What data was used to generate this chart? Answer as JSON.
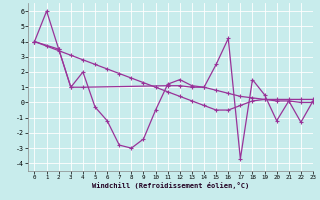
{
  "line1_x": [
    0,
    1,
    2,
    3,
    4,
    5,
    6,
    7,
    8,
    9,
    10,
    11,
    12,
    13,
    14,
    15,
    16,
    17,
    18,
    19,
    20,
    21,
    22,
    23
  ],
  "line1_y": [
    4,
    6,
    3.5,
    1,
    2,
    -0.3,
    -1.2,
    -2.8,
    -3,
    -2.4,
    -0.5,
    1.2,
    1.5,
    1.1,
    1.0,
    2.5,
    4.2,
    -3.7,
    1.5,
    0.5,
    -1.2,
    0.1,
    -1.3,
    0.1
  ],
  "line2_x": [
    0,
    2,
    3,
    4,
    11,
    12,
    13,
    14,
    15,
    16,
    17,
    18,
    19,
    20,
    21,
    22,
    23
  ],
  "line2_y": [
    4,
    3.5,
    1.0,
    1.0,
    1.1,
    1.1,
    1.0,
    1.0,
    0.8,
    0.6,
    0.4,
    0.3,
    0.2,
    0.1,
    0.1,
    0.0,
    0.0
  ],
  "line3_x": [
    0,
    1,
    2,
    3,
    4,
    5,
    6,
    7,
    8,
    9,
    10,
    11,
    12,
    13,
    14,
    15,
    16,
    17,
    18,
    19,
    20,
    21,
    22,
    23
  ],
  "line3_y": [
    4.0,
    3.7,
    3.4,
    3.1,
    2.8,
    2.5,
    2.2,
    1.9,
    1.6,
    1.3,
    1.0,
    0.7,
    0.4,
    0.1,
    -0.2,
    -0.5,
    -0.5,
    -0.2,
    0.1,
    0.2,
    0.2,
    0.2,
    0.2,
    0.2
  ],
  "xlabel": "Windchill (Refroidissement éolien,°C)",
  "xlim": [
    -0.5,
    23
  ],
  "ylim": [
    -4.5,
    6.5
  ],
  "xticks": [
    0,
    1,
    2,
    3,
    4,
    5,
    6,
    7,
    8,
    9,
    10,
    11,
    12,
    13,
    14,
    15,
    16,
    17,
    18,
    19,
    20,
    21,
    22,
    23
  ],
  "yticks": [
    -4,
    -3,
    -2,
    -1,
    0,
    1,
    2,
    3,
    4,
    5,
    6
  ],
  "line_color": "#993399",
  "bg_color": "#c8ecec",
  "grid_color": "#b0dede"
}
